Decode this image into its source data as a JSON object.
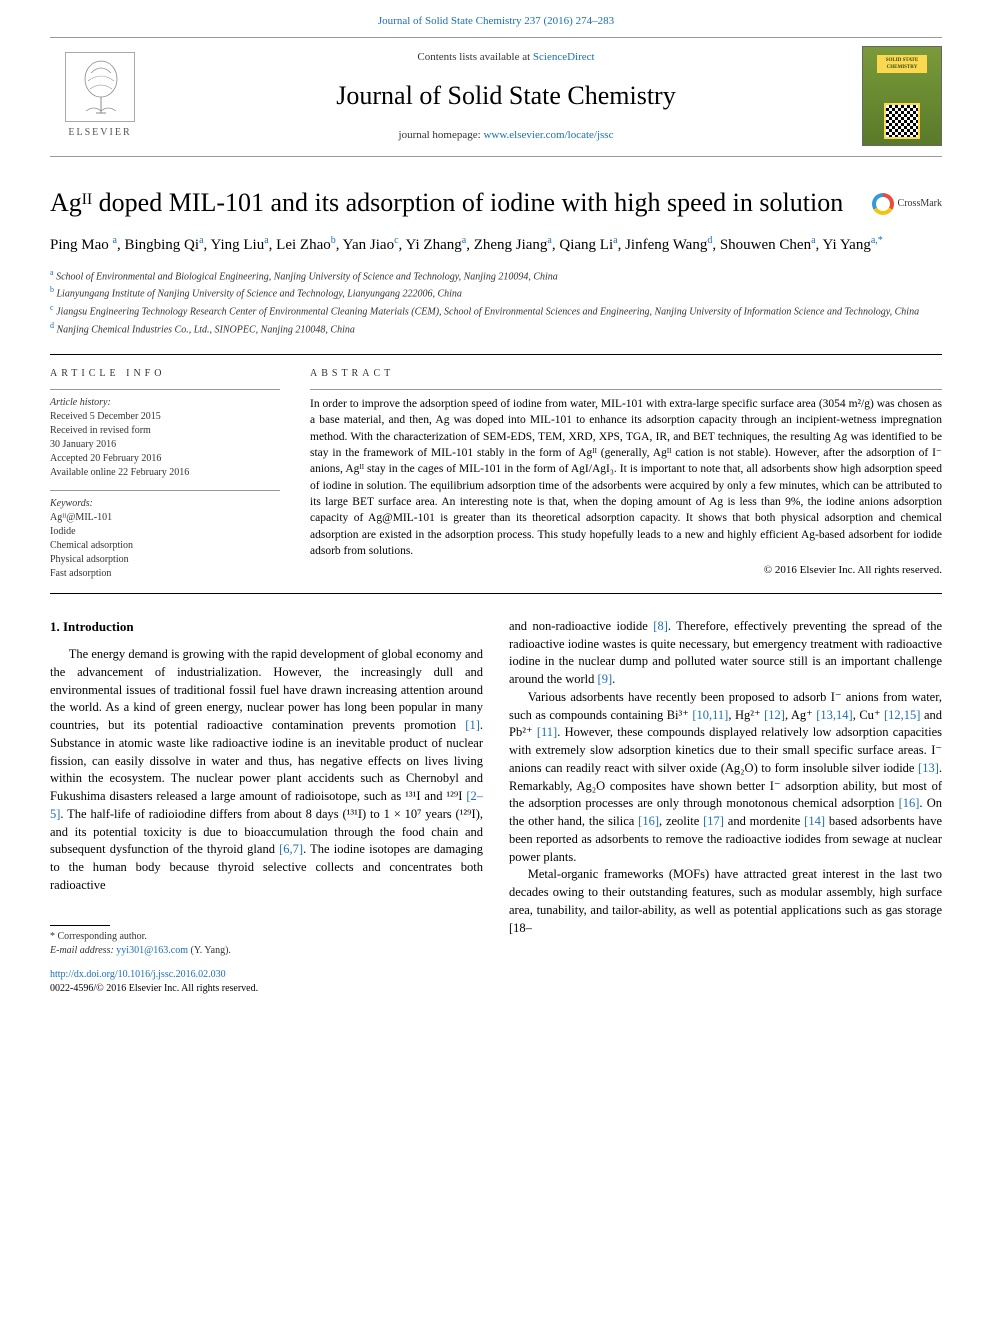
{
  "top": {
    "journal_ref": "Journal of Solid State Chemistry 237 (2016) 274–283",
    "contents_prefix": "Contents lists available at ",
    "contents_link": "ScienceDirect",
    "journal_name": "Journal of Solid State Chemistry",
    "homepage_prefix": "journal homepage: ",
    "homepage_link": "www.elsevier.com/locate/jssc",
    "elsevier": "ELSEVIER",
    "cover_text": "SOLID STATE CHEMISTRY"
  },
  "crossmark": "CrossMark",
  "title": "Agᴵᴵ doped MIL-101 and its adsorption of iodine with high speed in solution",
  "authors_html": "Ping Mao <span class='sup'>a</span>, Bingbing Qi<span class='sup'>a</span>, Ying Liu<span class='sup'>a</span>, Lei Zhao<span class='sup'>b</span>, Yan Jiao<span class='sup'>c</span>, Yi Zhang<span class='sup'>a</span>, Zheng Jiang<span class='sup'>a</span>, Qiang Li<span class='sup'>a</span>, Jinfeng Wang<span class='sup'>d</span>, Shouwen Chen<span class='sup'>a</span>, Yi Yang<span class='sup'>a,*</span>",
  "affiliations": [
    {
      "sup": "a",
      "text": "School of Environmental and Biological Engineering, Nanjing University of Science and Technology, Nanjing 210094, China"
    },
    {
      "sup": "b",
      "text": "Lianyungang Institute of Nanjing University of Science and Technology, Lianyungang 222006, China"
    },
    {
      "sup": "c",
      "text": "Jiangsu Engineering Technology Research Center of Environmental Cleaning Materials (CEM), School of Environmental Sciences and Engineering, Nanjing University of Information Science and Technology, China"
    },
    {
      "sup": "d",
      "text": "Nanjing Chemical Industries Co., Ltd., SINOPEC, Nanjing 210048, China"
    }
  ],
  "info": {
    "hdr": "ARTICLE INFO",
    "history_lbl": "Article history:",
    "history": [
      "Received 5 December 2015",
      "Received in revised form",
      "30 January 2016",
      "Accepted 20 February 2016",
      "Available online 22 February 2016"
    ],
    "keywords_lbl": "Keywords:",
    "keywords": [
      "Agᴵᴵ@MIL-101",
      "Iodide",
      "Chemical adsorption",
      "Physical adsorption",
      "Fast adsorption"
    ]
  },
  "abstract": {
    "hdr": "ABSTRACT",
    "body": "In order to improve the adsorption speed of iodine from water, MIL-101 with extra-large specific surface area (3054 m²/g) was chosen as a base material, and then, Ag was doped into MIL-101 to enhance its adsorption capacity through an incipient-wetness impregnation method. With the characterization of SEM-EDS, TEM, XRD, XPS, TGA, IR, and BET techniques, the resulting Ag was identified to be stay in the framework of MIL-101 stably in the form of Agᴵᴵ (generally, Agᴵᴵ cation is not stable). However, after the adsorption of I⁻ anions, Agᴵᴵ stay in the cages of MIL-101 in the form of AgI/AgI₃. It is important to note that, all adsorbents show high adsorption speed of iodine in solution. The equilibrium adsorption time of the adsorbents were acquired by only a few minutes, which can be attributed to its large BET surface area. An interesting note is that, when the doping amount of Ag is less than 9%, the iodine anions adsorption capacity of Ag@MIL-101 is greater than its theoretical adsorption capacity. It shows that both physical adsorption and chemical adsorption are existed in the adsorption process. This study hopefully leads to a new and highly efficient Ag-based adsorbent for iodide adsorb from solutions.",
    "copyright": "© 2016 Elsevier Inc. All rights reserved."
  },
  "section1": {
    "heading": "1.  Introduction",
    "col1_p1": "The energy demand is growing with the rapid development of global economy and the advancement of industrialization. However, the increasingly dull and environmental issues of traditional fossil fuel have drawn increasing attention around the world. As a kind of green energy, nuclear power has long been popular in many countries, but its potential radioactive contamination prevents promotion [1]. Substance in atomic waste like radioactive iodine is an inevitable product of nuclear fission, can easily dissolve in water and thus, has negative effects on lives living within the ecosystem. The nuclear power plant accidents such as Chernobyl and Fukushima disasters released a large amount of radioisotope, such as ¹³¹I and ¹²⁹I [2–5]. The half-life of radioiodine differs from about 8 days (¹³¹I) to 1 × 10⁷ years (¹²⁹I), and its potential toxicity is due to bioaccumulation through the food chain and subsequent dysfunction of the thyroid gland [6,7]. The iodine isotopes are damaging to the human body because thyroid selective collects and concentrates both radioactive",
    "col2_p1": "and non-radioactive iodide [8]. Therefore, effectively preventing the spread of the radioactive iodine wastes is quite necessary, but emergency treatment with radioactive iodine in the nuclear dump and polluted water source still is an important challenge around the world [9].",
    "col2_p2": "Various adsorbents have recently been proposed to adsorb I⁻ anions from water, such as compounds containing Bi³⁺ [10,11], Hg²⁺ [12], Ag⁺ [13,14], Cu⁺ [12,15] and Pb²⁺ [11]. However, these compounds displayed relatively low adsorption capacities with extremely slow adsorption kinetics due to their small specific surface areas. I⁻ anions can readily react with silver oxide (Ag₂O) to form insoluble silver iodide [13]. Remarkably, Ag₂O composites have shown better I⁻ adsorption ability, but most of the adsorption processes are only through monotonous chemical adsorption [16]. On the other hand, the silica [16], zeolite [17] and mordenite [14] based adsorbents have been reported as adsorbents to remove the radioactive iodides from sewage at nuclear power plants.",
    "col2_p3": "Metal-organic frameworks (MOFs) have attracted great interest in the last two decades owing to their outstanding features, such as modular assembly, high surface area, tunability, and tailor-ability, as well as potential applications such as gas storage [18–"
  },
  "footer": {
    "corr": "* Corresponding author.",
    "email_lbl": "E-mail address: ",
    "email": "yyi301@163.com",
    "email_suffix": " (Y. Yang).",
    "doi": "http://dx.doi.org/10.1016/j.jssc.2016.02.030",
    "issn": "0022-4596/© 2016 Elsevier Inc. All rights reserved."
  },
  "colors": {
    "link": "#1a6fb5",
    "text": "#000000",
    "muted": "#333333",
    "rule": "#999999"
  }
}
